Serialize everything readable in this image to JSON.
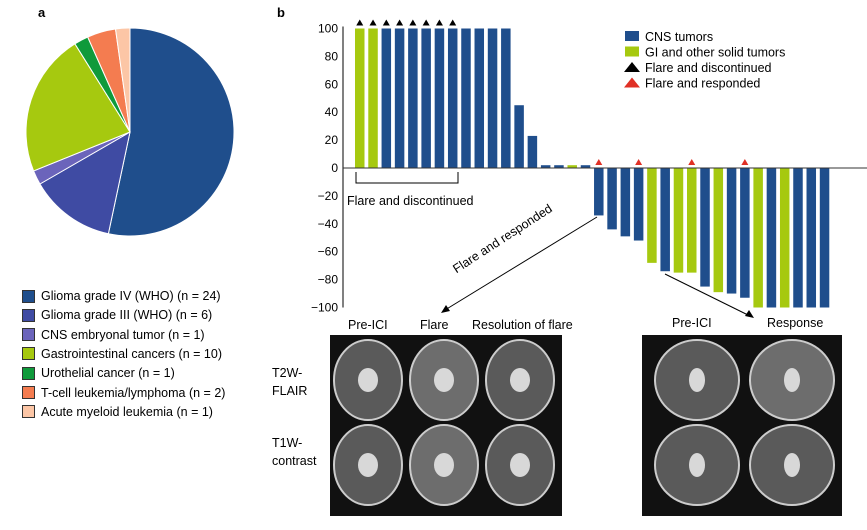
{
  "panels": {
    "a": "a",
    "b": "b"
  },
  "chart_data": [
    {
      "type": "pie",
      "title": "",
      "slices": [
        {
          "label": "Glioma grade IV (WHO)",
          "n_label": "(n = 24)",
          "value": 24,
          "color": "#1f4e8c"
        },
        {
          "label": "Glioma grade III (WHO)",
          "n_label": "(n = 6)",
          "value": 6,
          "color": "#3f4ba3"
        },
        {
          "label": "CNS embryonal tumor",
          "n_label": "(n = 1)",
          "value": 1,
          "color": "#6b64bb"
        },
        {
          "label": "Gastrointestinal cancers",
          "n_label": "(n = 10)",
          "value": 10,
          "color": "#a6c90f"
        },
        {
          "label": "Urothelial cancer",
          "n_label": "(n = 1)",
          "value": 1,
          "color": "#0f9a3b"
        },
        {
          "label": "T-cell leukemia/lymphoma",
          "n_label": "(n = 2)",
          "value": 2,
          "color": "#f47c50"
        },
        {
          "label": "Acute myeloid leukemia",
          "n_label": "(n = 1)",
          "value": 1,
          "color": "#fcc6a6"
        }
      ]
    },
    {
      "type": "bar",
      "ylim": [
        -100,
        100
      ],
      "yticks": [
        "100",
        "80",
        "60",
        "40",
        "20",
        "0",
        "−20",
        "−40",
        "−60",
        "−80",
        "−100"
      ],
      "ytick_values": [
        100,
        80,
        60,
        40,
        20,
        0,
        -20,
        -40,
        -60,
        -80,
        -100
      ],
      "colors": {
        "cns": "#1f4e8c",
        "gi": "#a6c90f",
        "disc": "#000000",
        "resp": "#e03025"
      },
      "legend": [
        {
          "label": "CNS tumors",
          "kind": "cns"
        },
        {
          "label": "GI and other solid tumors",
          "kind": "gi"
        },
        {
          "label": "Flare and discontinued",
          "kind": "disc"
        },
        {
          "label": "Flare and responded",
          "kind": "resp"
        }
      ],
      "bars": [
        {
          "v": 100,
          "k": "gi",
          "m": "disc"
        },
        {
          "v": 100,
          "k": "gi",
          "m": "disc"
        },
        {
          "v": 100,
          "k": "cns",
          "m": "disc"
        },
        {
          "v": 100,
          "k": "cns",
          "m": "disc"
        },
        {
          "v": 100,
          "k": "cns",
          "m": "disc"
        },
        {
          "v": 100,
          "k": "cns",
          "m": "disc"
        },
        {
          "v": 100,
          "k": "cns",
          "m": "disc"
        },
        {
          "v": 100,
          "k": "cns",
          "m": "disc"
        },
        {
          "v": 100,
          "k": "cns"
        },
        {
          "v": 100,
          "k": "cns"
        },
        {
          "v": 100,
          "k": "cns"
        },
        {
          "v": 100,
          "k": "cns"
        },
        {
          "v": 45,
          "k": "cns"
        },
        {
          "v": 23,
          "k": "cns"
        },
        {
          "v": 2,
          "k": "cns"
        },
        {
          "v": 2,
          "k": "cns"
        },
        {
          "v": 2,
          "k": "gi"
        },
        {
          "v": 2,
          "k": "cns"
        },
        {
          "v": -34,
          "k": "cns",
          "m": "resp"
        },
        {
          "v": -44,
          "k": "cns"
        },
        {
          "v": -49,
          "k": "cns"
        },
        {
          "v": -52,
          "k": "cns",
          "m": "resp"
        },
        {
          "v": -68,
          "k": "gi"
        },
        {
          "v": -74,
          "k": "cns"
        },
        {
          "v": -75,
          "k": "gi"
        },
        {
          "v": -75,
          "k": "gi",
          "m": "resp"
        },
        {
          "v": -85,
          "k": "cns"
        },
        {
          "v": -89,
          "k": "gi"
        },
        {
          "v": -90,
          "k": "cns"
        },
        {
          "v": -93,
          "k": "cns",
          "m": "resp"
        },
        {
          "v": -100,
          "k": "gi"
        },
        {
          "v": -100,
          "k": "cns"
        },
        {
          "v": -100,
          "k": "gi"
        },
        {
          "v": -100,
          "k": "cns"
        },
        {
          "v": -100,
          "k": "cns"
        },
        {
          "v": -100,
          "k": "cns"
        }
      ],
      "annotations": {
        "discontinued": "Flare and discontinued",
        "responded": "Flare and responded"
      }
    }
  ],
  "mri": {
    "left_cols": [
      "Pre-ICI",
      "Flare",
      "Resolution of flare"
    ],
    "right_cols": [
      "Pre-ICI",
      "Response"
    ],
    "row1": "T2W-\nFLAIR",
    "row1a": "T2W-",
    "row1b": "FLAIR",
    "row2a": "T1W-",
    "row2b": "contrast"
  }
}
